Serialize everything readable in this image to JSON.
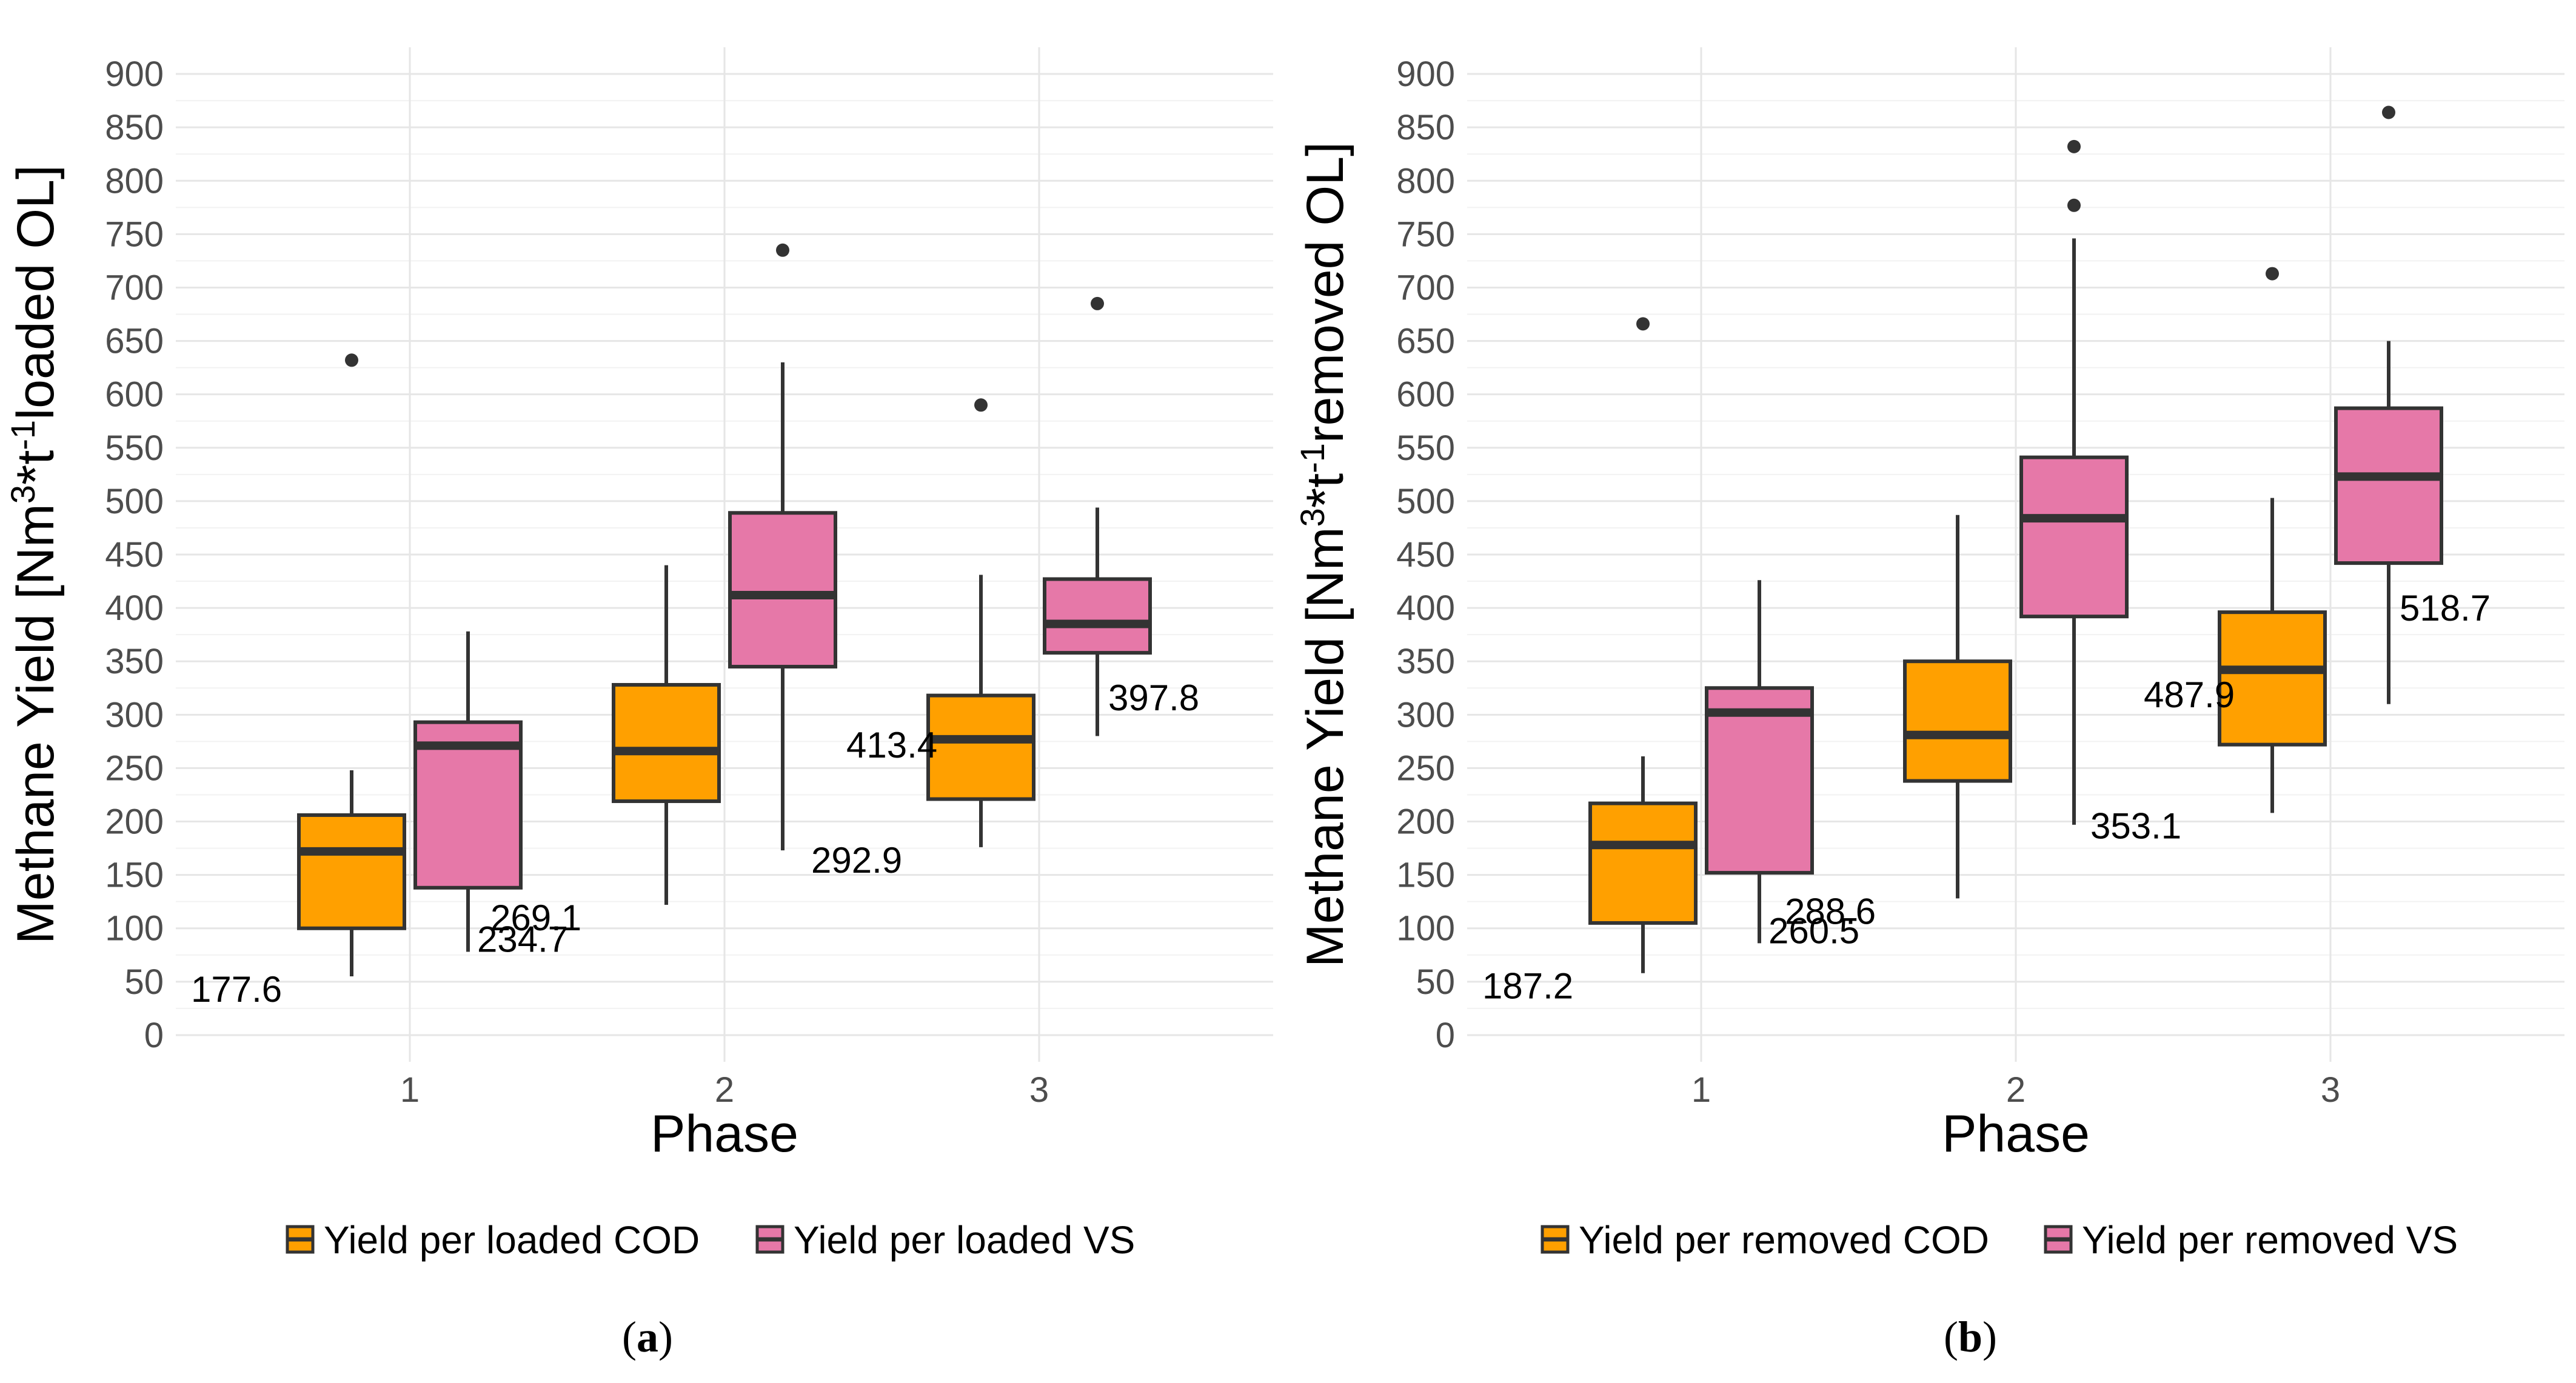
{
  "chart_data": [
    {
      "type": "box",
      "panel_label": "(a)",
      "panel_letter": "a",
      "xlabel": "Phase",
      "ylabel_parts": [
        "Methane Yield [Nm",
        "3",
        "*t",
        "-1",
        "loaded OL]"
      ],
      "ylim": [
        -25,
        925
      ],
      "yticks": [
        0,
        50,
        100,
        150,
        200,
        250,
        300,
        350,
        400,
        450,
        500,
        550,
        600,
        650,
        700,
        750,
        800,
        850,
        900
      ],
      "categories": [
        "1",
        "2",
        "3"
      ],
      "legend": [
        "Yield per loaded COD",
        "Yield per loaded VS"
      ],
      "colors": [
        "#FFA000",
        "#E678A8"
      ],
      "series": [
        {
          "name": "Yield per loaded COD",
          "boxes": [
            {
              "phase": "1",
              "whisker_low": 55,
              "q1": 100,
              "median": 172,
              "q3": 206,
              "whisker_high": 248,
              "outliers": [
                632
              ],
              "label": "177.6"
            },
            {
              "phase": "2",
              "whisker_low": 122,
              "q1": 219,
              "median": 266,
              "q3": 328,
              "whisker_high": 440,
              "outliers": [],
              "label": "269.1"
            },
            {
              "phase": "3",
              "whisker_low": 176,
              "q1": 221,
              "median": 277,
              "q3": 318,
              "whisker_high": 431,
              "outliers": [
                590
              ],
              "label": "292.9"
            }
          ]
        },
        {
          "name": "Yield per loaded VS",
          "boxes": [
            {
              "phase": "1",
              "whisker_low": 78,
              "q1": 138,
              "median": 271,
              "q3": 293,
              "whisker_high": 378,
              "outliers": [],
              "label": "234.7"
            },
            {
              "phase": "2",
              "whisker_low": 173,
              "q1": 345,
              "median": 412,
              "q3": 489,
              "whisker_high": 630,
              "outliers": [
                735
              ],
              "label": "413.4"
            },
            {
              "phase": "3",
              "whisker_low": 280,
              "q1": 358,
              "median": 385,
              "q3": 427,
              "whisker_high": 494,
              "outliers": [
                685
              ],
              "label": "397.8"
            }
          ]
        }
      ]
    },
    {
      "type": "box",
      "panel_label": "(b)",
      "panel_letter": "b",
      "xlabel": "Phase",
      "ylabel_parts": [
        "Methane Yield [Nm",
        "3",
        "*t",
        "-1",
        "removed OL]"
      ],
      "ylim": [
        -25,
        925
      ],
      "yticks": [
        0,
        50,
        100,
        150,
        200,
        250,
        300,
        350,
        400,
        450,
        500,
        550,
        600,
        650,
        700,
        750,
        800,
        850,
        900
      ],
      "categories": [
        "1",
        "2",
        "3"
      ],
      "legend": [
        "Yield per removed COD",
        "Yield per removed VS"
      ],
      "colors": [
        "#FFA000",
        "#E678A8"
      ],
      "series": [
        {
          "name": "Yield per removed COD",
          "boxes": [
            {
              "phase": "1",
              "whisker_low": 58,
              "q1": 105,
              "median": 178,
              "q3": 217,
              "whisker_high": 261,
              "outliers": [
                666
              ],
              "label": "187.2"
            },
            {
              "phase": "2",
              "whisker_low": 128,
              "q1": 238,
              "median": 281,
              "q3": 350,
              "whisker_high": 487,
              "outliers": [],
              "label": "288.6"
            },
            {
              "phase": "3",
              "whisker_low": 208,
              "q1": 272,
              "median": 342,
              "q3": 396,
              "whisker_high": 503,
              "outliers": [
                713
              ],
              "label": "353.1"
            }
          ]
        },
        {
          "name": "Yield per removed VS",
          "boxes": [
            {
              "phase": "1",
              "whisker_low": 86,
              "q1": 152,
              "median": 302,
              "q3": 325,
              "whisker_high": 426,
              "outliers": [],
              "label": "260.5"
            },
            {
              "phase": "2",
              "whisker_low": 197,
              "q1": 392,
              "median": 484,
              "q3": 541,
              "whisker_high": 746,
              "outliers": [
                777,
                832
              ],
              "label": "487.9"
            },
            {
              "phase": "3",
              "whisker_low": 310,
              "q1": 442,
              "median": 523,
              "q3": 587,
              "whisker_high": 650,
              "outliers": [
                864
              ],
              "label": "518.7"
            }
          ]
        }
      ]
    }
  ]
}
